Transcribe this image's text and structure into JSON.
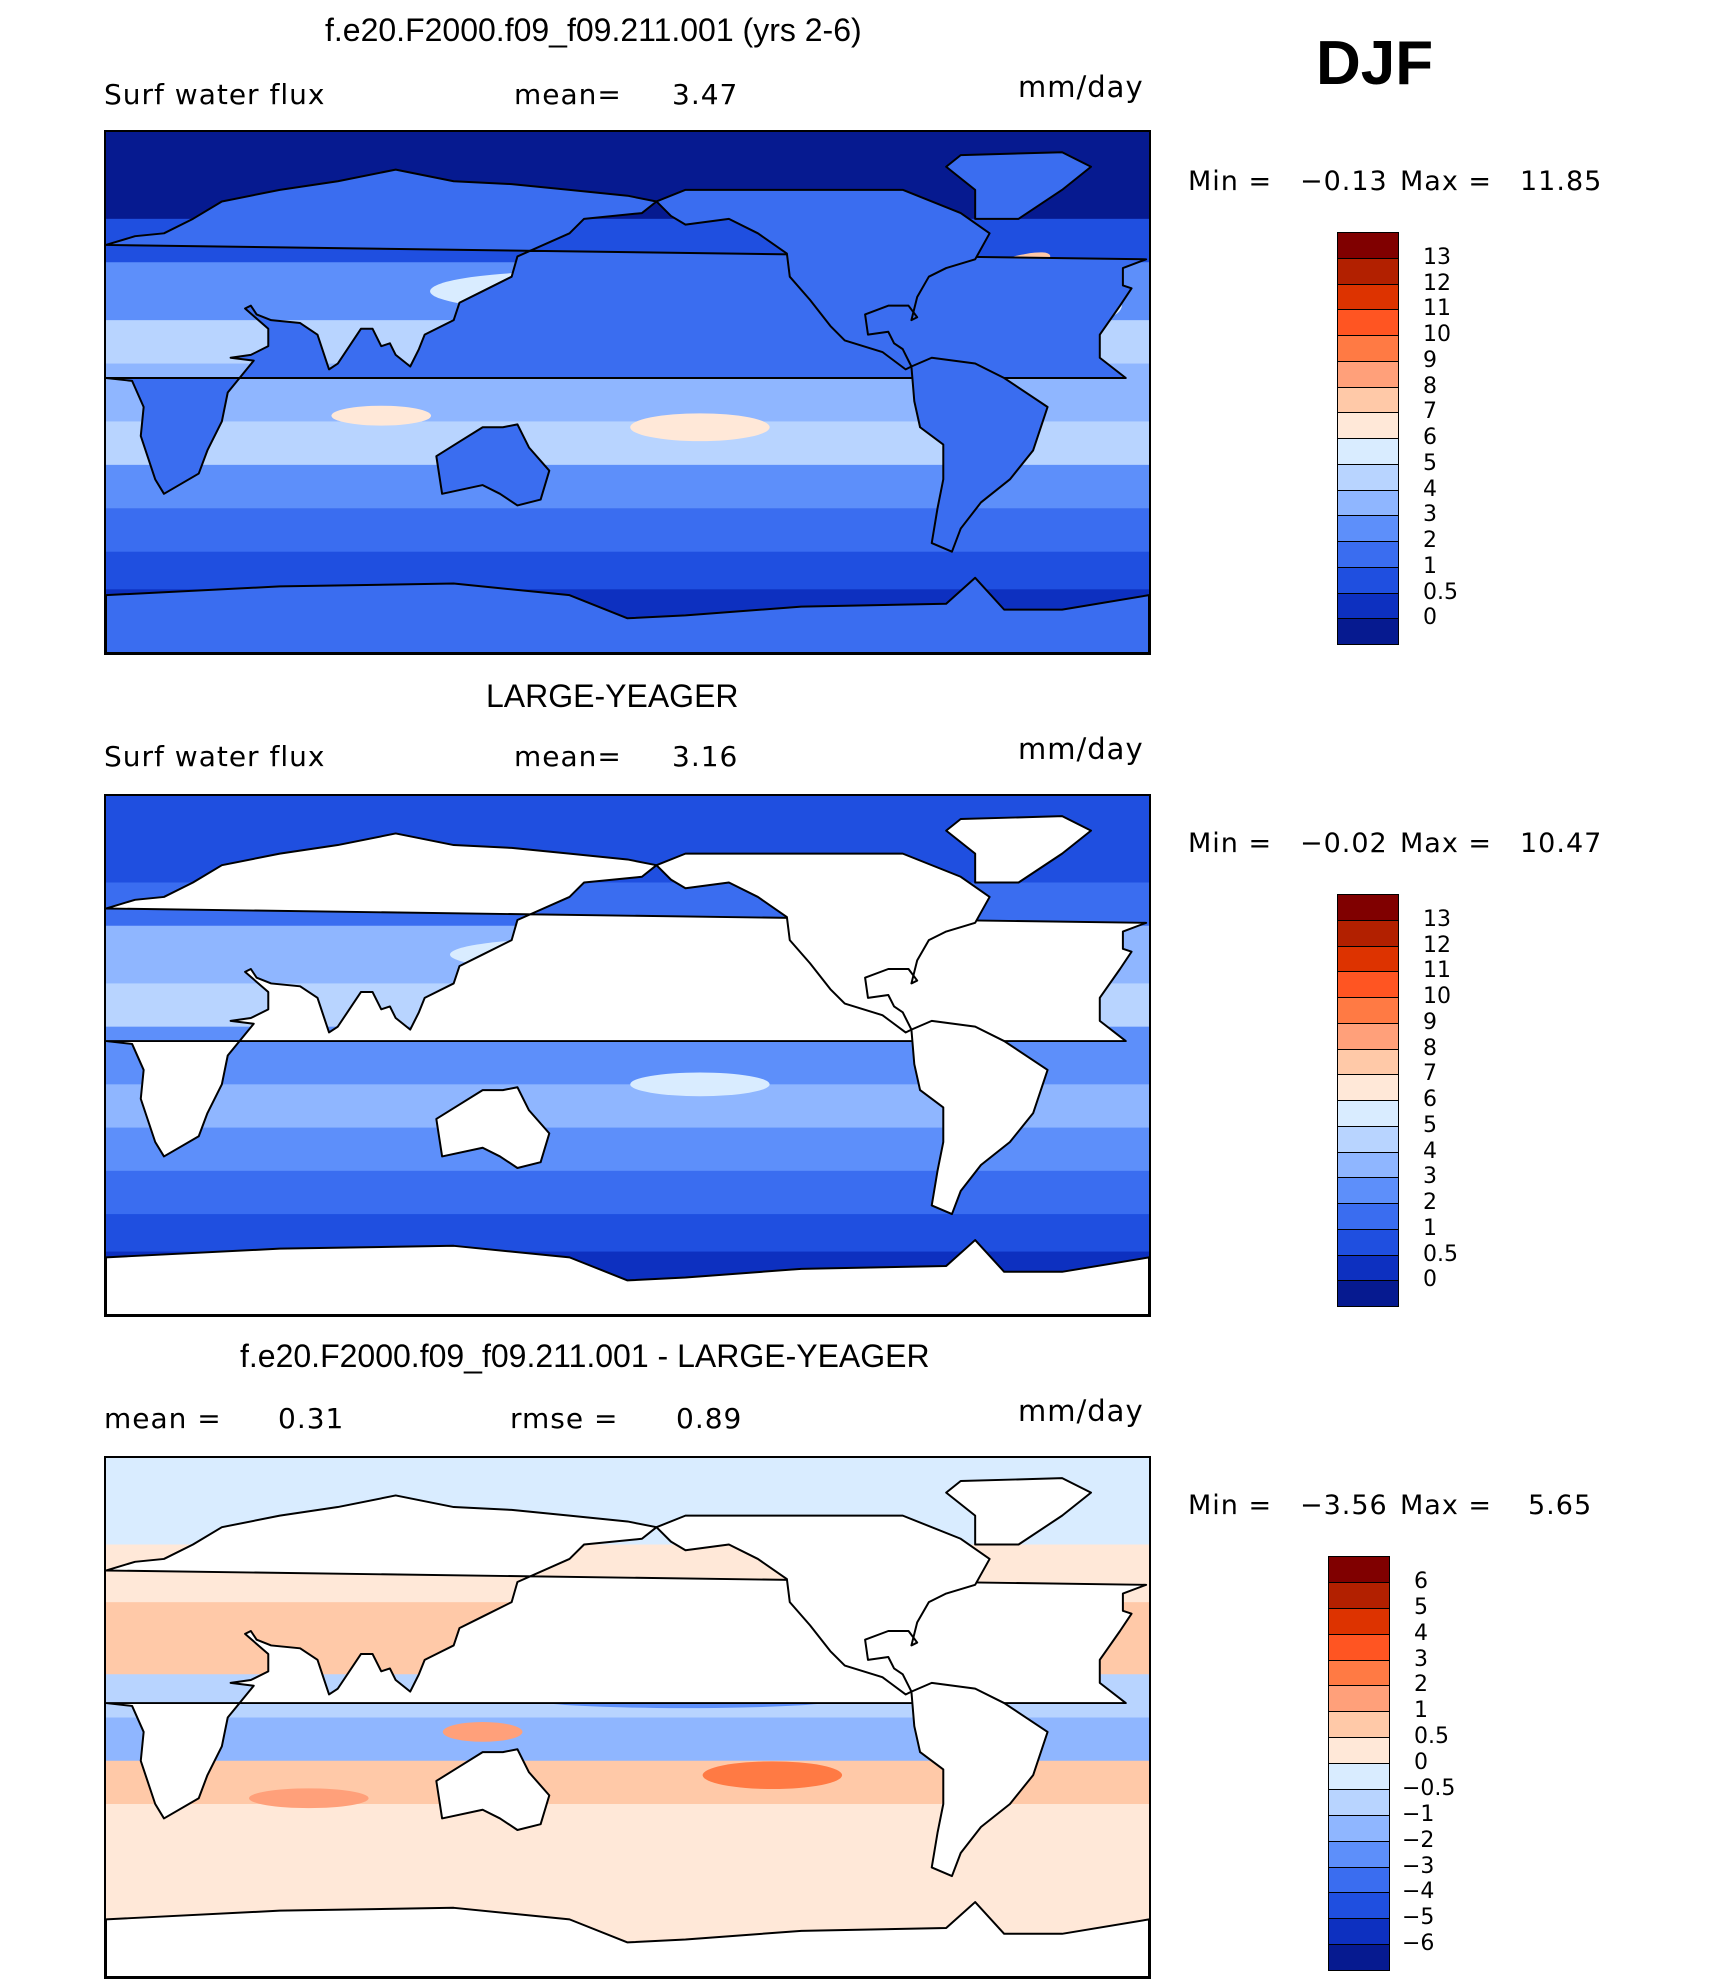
{
  "season": "DJF",
  "panels": [
    {
      "id": "model",
      "title": "f.e20.F2000.f09_f09.211.001 (yrs 2-6)",
      "left_label": "Surf water flux",
      "mid_label": "mean=",
      "mid_value": "3.47",
      "units": "mm/day",
      "min_label": "Min =",
      "min_value": "−0.13",
      "max_label": "Max =",
      "max_value": "11.85",
      "land_filled": true,
      "colorbar": {
        "ticks": [
          "13",
          "12",
          "11",
          "10",
          "9",
          "8",
          "7",
          "6",
          "5",
          "4",
          "3",
          "2",
          "1",
          "0.5",
          "0"
        ],
        "colors": [
          "#800000",
          "#b22000",
          "#dd3300",
          "#ff5522",
          "#ff7a44",
          "#ffa07a",
          "#ffc9a8",
          "#ffe8d8",
          "#d9ecff",
          "#b8d4ff",
          "#8fb6ff",
          "#5d8ffa",
          "#3a6df0",
          "#1f4fe0",
          "#0d30c0",
          "#061a90"
        ]
      }
    },
    {
      "id": "obs",
      "title": "LARGE-YEAGER",
      "left_label": "Surf water flux",
      "mid_label": "mean=",
      "mid_value": "3.16",
      "units": "mm/day",
      "min_label": "Min =",
      "min_value": "−0.02",
      "max_label": "Max =",
      "max_value": "10.47",
      "land_filled": false,
      "colorbar": {
        "ticks": [
          "13",
          "12",
          "11",
          "10",
          "9",
          "8",
          "7",
          "6",
          "5",
          "4",
          "3",
          "2",
          "1",
          "0.5",
          "0"
        ],
        "colors": [
          "#800000",
          "#b22000",
          "#dd3300",
          "#ff5522",
          "#ff7a44",
          "#ffa07a",
          "#ffc9a8",
          "#ffe8d8",
          "#d9ecff",
          "#b8d4ff",
          "#8fb6ff",
          "#5d8ffa",
          "#3a6df0",
          "#1f4fe0",
          "#0d30c0",
          "#061a90"
        ]
      }
    },
    {
      "id": "diff",
      "title": "f.e20.F2000.f09_f09.211.001 - LARGE-YEAGER",
      "left_label": "mean =",
      "left_value": "0.31",
      "mid_label": "rmse =",
      "mid_value": "0.89",
      "units": "mm/day",
      "min_label": "Min =",
      "min_value": "−3.56",
      "max_label": "Max =",
      "max_value": "5.65",
      "land_filled": false,
      "colorbar": {
        "ticks": [
          "6",
          "5",
          "4",
          "3",
          "2",
          "1",
          "0.5",
          "0",
          "−0.5",
          "−1",
          "−2",
          "−3",
          "−4",
          "−5",
          "−6"
        ],
        "colors": [
          "#800000",
          "#b22000",
          "#dd3300",
          "#ff5522",
          "#ff7a44",
          "#ffa07a",
          "#ffc9a8",
          "#ffe8d8",
          "#d9ecff",
          "#b8d4ff",
          "#8fb6ff",
          "#5d8ffa",
          "#3a6df0",
          "#1f4fe0",
          "#0d30c0",
          "#061a90"
        ]
      }
    }
  ],
  "chart_data": [
    {
      "type": "heatmap",
      "title": "f.e20.F2000.f09_f09.211.001 (yrs 2-6)",
      "variable": "Surf water flux",
      "units": "mm/day",
      "mean": 3.47,
      "min": -0.13,
      "max": 11.85,
      "levels": [
        0,
        0.5,
        1,
        2,
        3,
        4,
        5,
        6,
        7,
        8,
        9,
        10,
        11,
        12,
        13
      ]
    },
    {
      "type": "heatmap",
      "title": "LARGE-YEAGER",
      "variable": "Surf water flux",
      "units": "mm/day",
      "mean": 3.16,
      "min": -0.02,
      "max": 10.47,
      "levels": [
        0,
        0.5,
        1,
        2,
        3,
        4,
        5,
        6,
        7,
        8,
        9,
        10,
        11,
        12,
        13
      ]
    },
    {
      "type": "heatmap",
      "title": "f.e20.F2000.f09_f09.211.001 - LARGE-YEAGER",
      "units": "mm/day",
      "mean": 0.31,
      "rmse": 0.89,
      "min": -3.56,
      "max": 5.65,
      "levels": [
        -6,
        -5,
        -4,
        -3,
        -2,
        -1,
        -0.5,
        0,
        0.5,
        1,
        2,
        3,
        4,
        5,
        6
      ]
    }
  ]
}
